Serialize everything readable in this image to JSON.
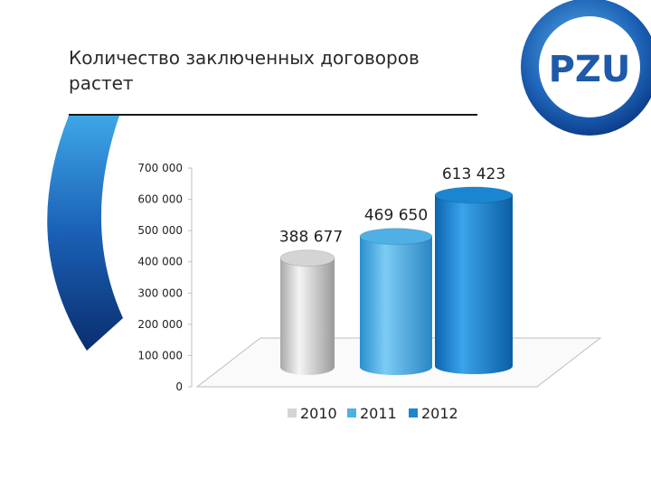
{
  "slide": {
    "title": "Количество заключенных договоров растет",
    "logo_text": "PZU"
  },
  "colors": {
    "accent_dark": "#0a2e6e",
    "accent_light": "#3ea6e6",
    "logo_ring": "#1e64b8",
    "series_2010": "#d4d4d4",
    "series_2011": "#4fb0e6",
    "series_2012": "#1a86d2"
  },
  "chart_data": {
    "type": "bar",
    "style": "3d-cylinder",
    "title": "",
    "xlabel": "",
    "ylabel": "",
    "ylim": [
      0,
      700000
    ],
    "yticks": [
      0,
      100000,
      200000,
      300000,
      400000,
      500000,
      600000,
      700000
    ],
    "ytick_labels": [
      "0",
      "100 000",
      "200 000",
      "300 000",
      "400 000",
      "500 000",
      "600 000",
      "700 000"
    ],
    "legend_position": "bottom",
    "grid": false,
    "series": [
      {
        "name": "2010",
        "value": 388677,
        "label": "388 677",
        "color": "#d4d4d4"
      },
      {
        "name": "2011",
        "value": 469650,
        "label": "469 650",
        "color": "#4fb0e6"
      },
      {
        "name": "2012",
        "value": 613423,
        "label": "613 423",
        "color": "#1a86d2"
      }
    ]
  }
}
